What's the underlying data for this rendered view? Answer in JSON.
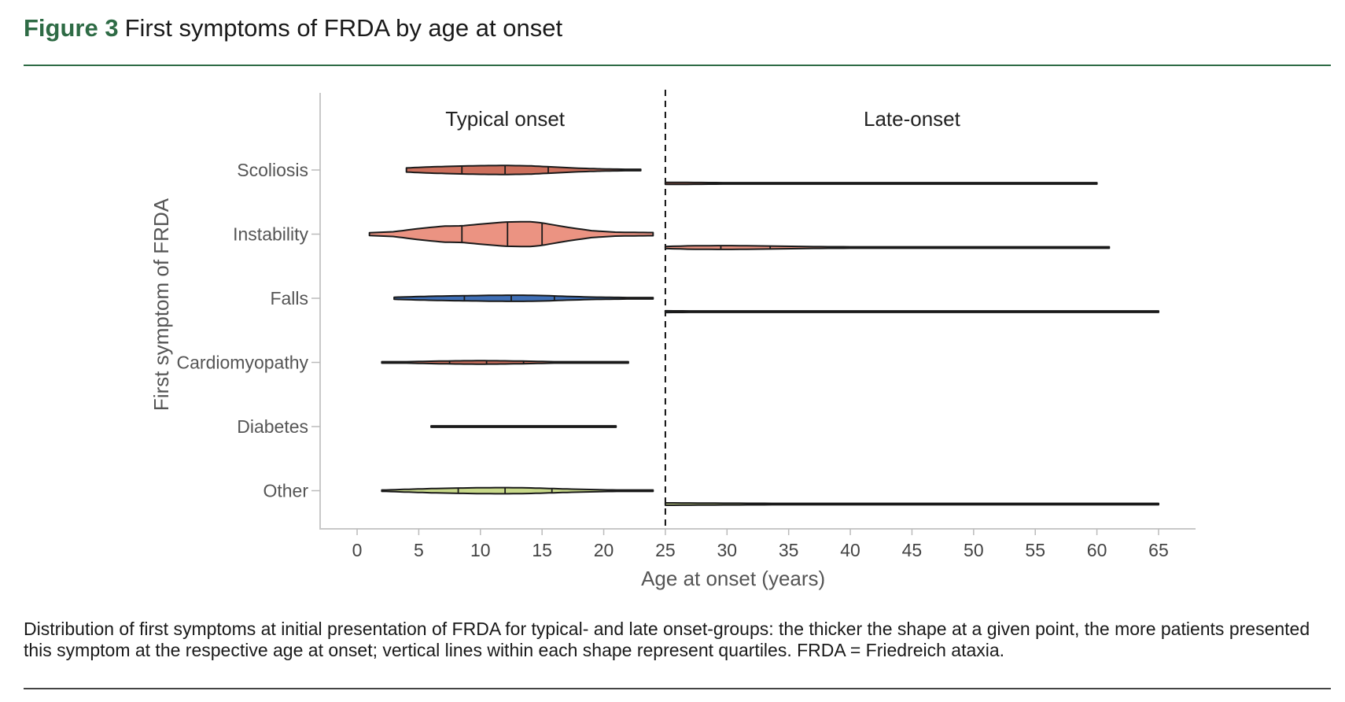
{
  "figure": {
    "number": "Figure 3",
    "title": "First symptoms of FRDA by age at onset",
    "caption": "Distribution of first symptoms at initial presentation of FRDA for typical- and late onset-groups: the thicker the shape at a given point, the more patients presented this symptom at the respective age at onset; vertical lines within each shape represent quartiles. FRDA = Friedreich ataxia."
  },
  "chart_data": {
    "type": "violin",
    "orientation": "horizontal",
    "xlabel": "Age at onset (years)",
    "ylabel": "First symptom of FRDA",
    "xlim": [
      -3,
      68
    ],
    "xticks": [
      0,
      5,
      10,
      15,
      20,
      25,
      30,
      35,
      40,
      45,
      50,
      55,
      60,
      65
    ],
    "grid": false,
    "group_split": 25,
    "group_labels": [
      {
        "label": "Typical onset",
        "x": 12
      },
      {
        "label": "Late-onset",
        "x": 45
      }
    ],
    "categories": [
      "Scoliosis",
      "Instability",
      "Falls",
      "Cardiomyopathy",
      "Diabetes",
      "Other"
    ],
    "colors": {
      "Scoliosis": "#cc6f5c",
      "Instability": "#eb9382",
      "Falls": "#3f6fb6",
      "Cardiomyopathy": "#cc6f5c",
      "Diabetes": "#cc6f5c",
      "Other": "#c8d98a"
    },
    "series": [
      {
        "category": "Scoliosis",
        "group": "Typical onset",
        "min": 4,
        "max": 23,
        "quartiles": [
          8.5,
          12,
          15.5
        ],
        "density": [
          [
            4,
            0.12
          ],
          [
            6,
            0.18
          ],
          [
            8,
            0.22
          ],
          [
            10,
            0.25
          ],
          [
            12,
            0.26
          ],
          [
            14,
            0.24
          ],
          [
            16,
            0.17
          ],
          [
            18,
            0.1
          ],
          [
            20,
            0.06
          ],
          [
            23,
            0.03
          ]
        ]
      },
      {
        "category": "Instability",
        "group": "Typical onset",
        "min": 1,
        "max": 24,
        "quartiles": [
          8.5,
          12.2,
          15
        ],
        "density": [
          [
            1,
            0.08
          ],
          [
            3,
            0.14
          ],
          [
            5,
            0.32
          ],
          [
            7,
            0.46
          ],
          [
            8.5,
            0.48
          ],
          [
            10,
            0.58
          ],
          [
            12,
            0.7
          ],
          [
            14,
            0.72
          ],
          [
            15,
            0.65
          ],
          [
            17,
            0.4
          ],
          [
            19,
            0.2
          ],
          [
            21,
            0.11
          ],
          [
            24,
            0.09
          ]
        ]
      },
      {
        "category": "Falls",
        "group": "Typical onset",
        "min": 3,
        "max": 24,
        "quartiles": [
          8.7,
          12.5,
          16
        ],
        "density": [
          [
            3,
            0.06
          ],
          [
            5,
            0.1
          ],
          [
            7,
            0.13
          ],
          [
            9,
            0.15
          ],
          [
            11,
            0.17
          ],
          [
            13,
            0.18
          ],
          [
            15,
            0.16
          ],
          [
            17,
            0.11
          ],
          [
            19,
            0.07
          ],
          [
            21,
            0.05
          ],
          [
            24,
            0.02
          ]
        ]
      },
      {
        "category": "Cardiomyopathy",
        "group": "Typical onset",
        "min": 2,
        "max": 22,
        "quartiles": [
          7.5,
          10.5,
          13.5
        ],
        "density": [
          [
            2,
            0.01
          ],
          [
            4,
            0.04
          ],
          [
            6,
            0.07
          ],
          [
            8,
            0.09
          ],
          [
            10,
            0.1
          ],
          [
            12,
            0.09
          ],
          [
            14,
            0.07
          ],
          [
            16,
            0.04
          ],
          [
            18,
            0.02
          ],
          [
            22,
            0.01
          ]
        ]
      },
      {
        "category": "Diabetes",
        "group": "Typical onset",
        "min": 6,
        "max": 21,
        "quartiles": [],
        "density": [
          [
            6,
            0.01
          ],
          [
            21,
            0.01
          ]
        ]
      },
      {
        "category": "Other",
        "group": "Typical onset",
        "min": 2,
        "max": 24,
        "quartiles": [
          8.2,
          12,
          15.8
        ],
        "density": [
          [
            2,
            0.03
          ],
          [
            4,
            0.08
          ],
          [
            6,
            0.12
          ],
          [
            8,
            0.15
          ],
          [
            10,
            0.17
          ],
          [
            12,
            0.18
          ],
          [
            14,
            0.16
          ],
          [
            16,
            0.12
          ],
          [
            18,
            0.08
          ],
          [
            20,
            0.05
          ],
          [
            24,
            0.02
          ]
        ]
      },
      {
        "category": "Scoliosis",
        "group": "Late-onset",
        "min": 25,
        "max": 60,
        "quartiles": [],
        "density": [
          [
            25,
            0.06
          ],
          [
            30,
            0.04
          ],
          [
            40,
            0.02
          ],
          [
            60,
            0.01
          ]
        ]
      },
      {
        "category": "Instability",
        "group": "Late-onset",
        "min": 25,
        "max": 61,
        "quartiles": [
          29.5,
          33.5
        ],
        "density": [
          [
            25,
            0.06
          ],
          [
            27,
            0.1
          ],
          [
            30,
            0.11
          ],
          [
            33,
            0.09
          ],
          [
            37,
            0.05
          ],
          [
            45,
            0.03
          ],
          [
            61,
            0.02
          ]
        ]
      },
      {
        "category": "Falls",
        "group": "Late-onset",
        "min": 25,
        "max": 65,
        "quartiles": [],
        "density": [
          [
            25,
            0.05
          ],
          [
            30,
            0.03
          ],
          [
            65,
            0.01
          ]
        ]
      },
      {
        "category": "Other",
        "group": "Late-onset",
        "min": 25,
        "max": 65,
        "quartiles": [],
        "density": [
          [
            25,
            0.07
          ],
          [
            30,
            0.05
          ],
          [
            40,
            0.03
          ],
          [
            65,
            0.01
          ]
        ]
      }
    ]
  }
}
